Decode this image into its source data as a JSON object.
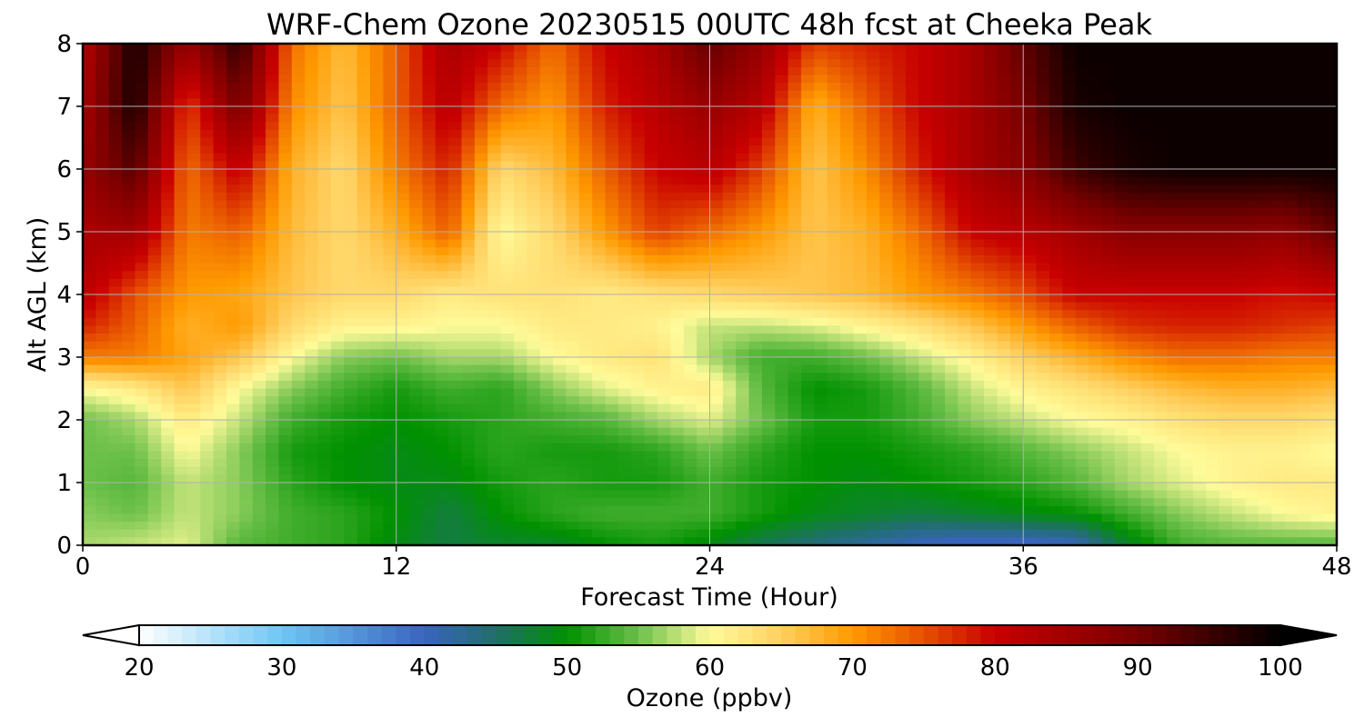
{
  "chart_data": {
    "type": "heatmap",
    "title": "WRF-Chem Ozone  20230515 00UTC 48h fcst at Cheeka Peak",
    "xlabel": "Forecast Time (Hour)",
    "ylabel": "Alt AGL (km)",
    "xlim": [
      0,
      48
    ],
    "ylim": [
      0,
      8
    ],
    "x_ticks": [
      0,
      12,
      24,
      36,
      48
    ],
    "y_ticks": [
      0,
      1,
      2,
      3,
      4,
      5,
      6,
      7,
      8
    ],
    "grid": true,
    "colorbar": {
      "label": "Ozone  (ppbv)",
      "range": [
        20,
        100
      ],
      "ticks": [
        20,
        30,
        40,
        50,
        60,
        70,
        80,
        90,
        100
      ],
      "extend": "both",
      "stops": [
        {
          "v": 20,
          "c": "#ffffff"
        },
        {
          "v": 30,
          "c": "#6ec6f4"
        },
        {
          "v": 40,
          "c": "#3a64c0"
        },
        {
          "v": 45,
          "c": "#1f6f6a"
        },
        {
          "v": 50,
          "c": "#009100"
        },
        {
          "v": 55,
          "c": "#6cc04a"
        },
        {
          "v": 60,
          "c": "#fffb9a"
        },
        {
          "v": 65,
          "c": "#ffd060"
        },
        {
          "v": 70,
          "c": "#ff9a00"
        },
        {
          "v": 75,
          "c": "#e65000"
        },
        {
          "v": 80,
          "c": "#c80000"
        },
        {
          "v": 90,
          "c": "#780000"
        },
        {
          "v": 100,
          "c": "#000000"
        }
      ]
    },
    "x": [
      0,
      2,
      4,
      6,
      8,
      10,
      12,
      14,
      16,
      18,
      20,
      22,
      24,
      26,
      28,
      30,
      32,
      34,
      36,
      38,
      40,
      42,
      44,
      46,
      48
    ],
    "y": [
      0,
      0.5,
      1,
      1.5,
      2,
      2.5,
      3,
      3.5,
      4,
      5,
      6,
      7,
      8
    ],
    "z": [
      [
        57,
        58,
        59,
        54,
        53,
        52,
        49,
        47,
        48,
        48,
        50,
        51,
        49,
        46,
        44,
        42,
        40,
        39,
        39,
        40,
        48,
        53,
        54,
        54,
        54
      ],
      [
        56,
        55,
        58,
        56,
        53,
        52,
        50,
        47,
        50,
        52,
        53,
        53,
        53,
        51,
        49,
        48,
        47,
        48,
        49,
        50,
        53,
        56,
        58,
        60,
        61
      ],
      [
        55,
        54,
        58,
        56,
        52,
        50,
        49,
        49,
        51,
        52,
        51,
        51,
        53,
        51,
        50,
        49,
        50,
        51,
        52,
        54,
        57,
        59,
        61,
        62,
        62
      ],
      [
        55,
        55,
        60,
        56,
        51,
        50,
        49,
        50,
        52,
        51,
        51,
        52,
        55,
        52,
        50,
        50,
        51,
        52,
        54,
        56,
        58,
        60,
        61,
        61,
        60
      ],
      [
        55,
        57,
        62,
        58,
        53,
        51,
        50,
        51,
        52,
        53,
        54,
        57,
        59,
        55,
        51,
        51,
        53,
        56,
        58,
        60,
        61,
        63,
        64,
        64,
        63
      ],
      [
        60,
        62,
        66,
        60,
        56,
        53,
        51,
        53,
        52,
        56,
        59,
        61,
        62,
        54,
        50,
        51,
        54,
        58,
        61,
        63,
        65,
        67,
        68,
        68,
        67
      ],
      [
        72,
        72,
        69,
        66,
        60,
        56,
        55,
        57,
        57,
        60,
        62,
        63,
        57,
        53,
        53,
        55,
        58,
        61,
        65,
        68,
        71,
        73,
        73,
        72,
        72
      ],
      [
        78,
        74,
        68,
        70,
        64,
        61,
        61,
        60,
        60,
        62,
        62,
        61,
        58,
        58,
        59,
        61,
        63,
        66,
        70,
        74,
        77,
        78,
        78,
        77,
        76
      ],
      [
        82,
        75,
        70,
        69,
        66,
        64,
        64,
        62,
        63,
        63,
        62,
        63,
        64,
        65,
        66,
        67,
        70,
        72,
        75,
        80,
        80,
        80,
        80,
        79,
        80
      ],
      [
        84,
        85,
        72,
        74,
        67,
        64,
        68,
        74,
        60,
        64,
        70,
        76,
        73,
        70,
        66,
        68,
        73,
        80,
        82,
        85,
        88,
        88,
        88,
        87,
        92
      ],
      [
        86,
        93,
        73,
        81,
        68,
        64,
        72,
        78,
        64,
        67,
        74,
        80,
        82,
        76,
        66,
        71,
        78,
        84,
        88,
        95,
        98,
        99,
        99,
        99,
        99
      ],
      [
        84,
        98,
        76,
        90,
        71,
        66,
        74,
        82,
        73,
        70,
        78,
        82,
        86,
        82,
        68,
        74,
        80,
        84,
        90,
        98,
        99,
        99,
        99,
        99,
        99
      ],
      [
        82,
        98,
        86,
        96,
        73,
        67,
        74,
        84,
        80,
        73,
        80,
        84,
        92,
        86,
        76,
        78,
        80,
        84,
        92,
        99,
        99,
        99,
        99,
        99,
        99
      ]
    ]
  }
}
